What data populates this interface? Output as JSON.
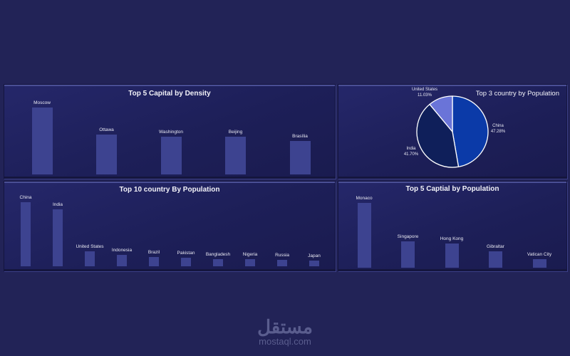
{
  "panels": {
    "density": {
      "title": "Top 5 Capital by Density"
    },
    "pie": {
      "title": "Top 3 country by Population"
    },
    "country10": {
      "title": "Top 10 country By Population"
    },
    "capital_pop": {
      "title": "Top 5 Captial by Population"
    }
  },
  "colors": {
    "background": "#222357",
    "bar": "#3d4390",
    "pie_china": "#0b3aa8",
    "pie_india": "#0f1f5a",
    "pie_us": "#6a74d8"
  },
  "watermark": {
    "arabic": "مستقل",
    "latin": "mostaql.com"
  },
  "chart_data": [
    {
      "type": "bar",
      "title": "Top 5 Capital by Density",
      "categories": [
        "Moscow",
        "Ottawa",
        "Washington",
        "Beijing",
        "Brasília"
      ],
      "values": [
        94,
        56,
        53,
        53,
        47
      ],
      "xlabel": "",
      "ylabel": "",
      "grid": false
    },
    {
      "type": "pie",
      "title": "Top 3 country by Population",
      "categories": [
        "China",
        "India",
        "United States"
      ],
      "values": [
        47.28,
        41.7,
        11.03
      ],
      "labels": [
        "47.28%",
        "41.70%",
        "11.03%"
      ]
    },
    {
      "type": "bar",
      "title": "Top 10 country By Population",
      "categories": [
        "China",
        "India",
        "United States",
        "Indonesia",
        "Brazil",
        "Pakistan",
        "Bangladesh",
        "Nigeria",
        "Russia",
        "Japan"
      ],
      "values": [
        90,
        80,
        21,
        16,
        13,
        12,
        10,
        10,
        9,
        8
      ],
      "xlabel": "",
      "ylabel": "",
      "grid": false
    },
    {
      "type": "bar",
      "title": "Top 5 Captial by Population",
      "categories": [
        "Monaco",
        "Singapore",
        "Hong Kong",
        "Gibraltar",
        "Vatican City"
      ],
      "values": [
        91,
        37,
        34,
        23,
        12
      ],
      "xlabel": "",
      "ylabel": "",
      "grid": false
    }
  ]
}
